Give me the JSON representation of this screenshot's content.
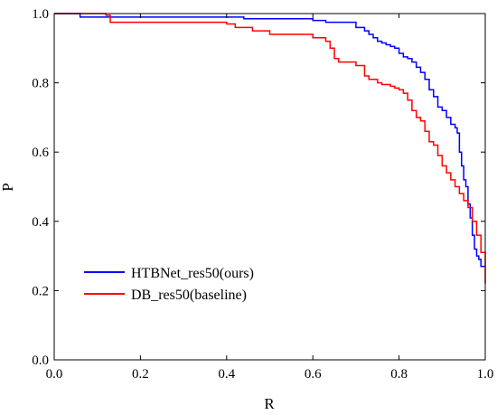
{
  "chart_data": {
    "type": "line",
    "title": "",
    "xlabel": "R",
    "ylabel": "P",
    "xlim": [
      0.0,
      1.0
    ],
    "ylim": [
      0.0,
      1.0
    ],
    "x_ticks": [
      "0.0",
      "0.2",
      "0.4",
      "0.6",
      "0.8",
      "1.0"
    ],
    "y_ticks": [
      "0.0",
      "0.2",
      "0.4",
      "0.6",
      "0.8",
      "1.0"
    ],
    "grid": false,
    "legend_position": "lower-left",
    "series": [
      {
        "name": "HTBNet_res50(ours)",
        "color": "#0000ff",
        "x": [
          0.0,
          0.04,
          0.06,
          0.4,
          0.44,
          0.5,
          0.6,
          0.63,
          0.7,
          0.72,
          0.73,
          0.74,
          0.75,
          0.76,
          0.77,
          0.78,
          0.79,
          0.8,
          0.81,
          0.82,
          0.83,
          0.84,
          0.85,
          0.86,
          0.87,
          0.88,
          0.89,
          0.9,
          0.91,
          0.92,
          0.93,
          0.935,
          0.94,
          0.945,
          0.95,
          0.955,
          0.96,
          0.965,
          0.97,
          0.975,
          0.98,
          0.985,
          0.99,
          1.0
        ],
        "y": [
          1.0,
          1.0,
          0.99,
          0.99,
          0.985,
          0.985,
          0.98,
          0.975,
          0.96,
          0.95,
          0.94,
          0.93,
          0.92,
          0.915,
          0.91,
          0.905,
          0.9,
          0.885,
          0.875,
          0.87,
          0.86,
          0.845,
          0.83,
          0.81,
          0.78,
          0.76,
          0.73,
          0.72,
          0.7,
          0.68,
          0.67,
          0.655,
          0.6,
          0.56,
          0.52,
          0.5,
          0.45,
          0.41,
          0.36,
          0.32,
          0.3,
          0.29,
          0.27,
          0.27
        ]
      },
      {
        "name": "DB_res50(baseline)",
        "color": "#ff0000",
        "x": [
          0.0,
          0.12,
          0.13,
          0.2,
          0.4,
          0.42,
          0.46,
          0.5,
          0.6,
          0.63,
          0.64,
          0.65,
          0.66,
          0.7,
          0.72,
          0.73,
          0.75,
          0.76,
          0.78,
          0.79,
          0.8,
          0.81,
          0.82,
          0.83,
          0.84,
          0.85,
          0.86,
          0.87,
          0.88,
          0.89,
          0.9,
          0.91,
          0.92,
          0.93,
          0.94,
          0.95,
          0.96,
          0.97,
          0.98,
          0.99,
          1.0
        ],
        "y": [
          1.0,
          0.995,
          0.975,
          0.975,
          0.97,
          0.96,
          0.95,
          0.94,
          0.93,
          0.92,
          0.9,
          0.87,
          0.86,
          0.85,
          0.82,
          0.81,
          0.8,
          0.795,
          0.79,
          0.785,
          0.78,
          0.77,
          0.75,
          0.72,
          0.7,
          0.69,
          0.66,
          0.63,
          0.62,
          0.59,
          0.56,
          0.54,
          0.52,
          0.5,
          0.48,
          0.46,
          0.44,
          0.4,
          0.36,
          0.31,
          0.22
        ]
      }
    ]
  }
}
